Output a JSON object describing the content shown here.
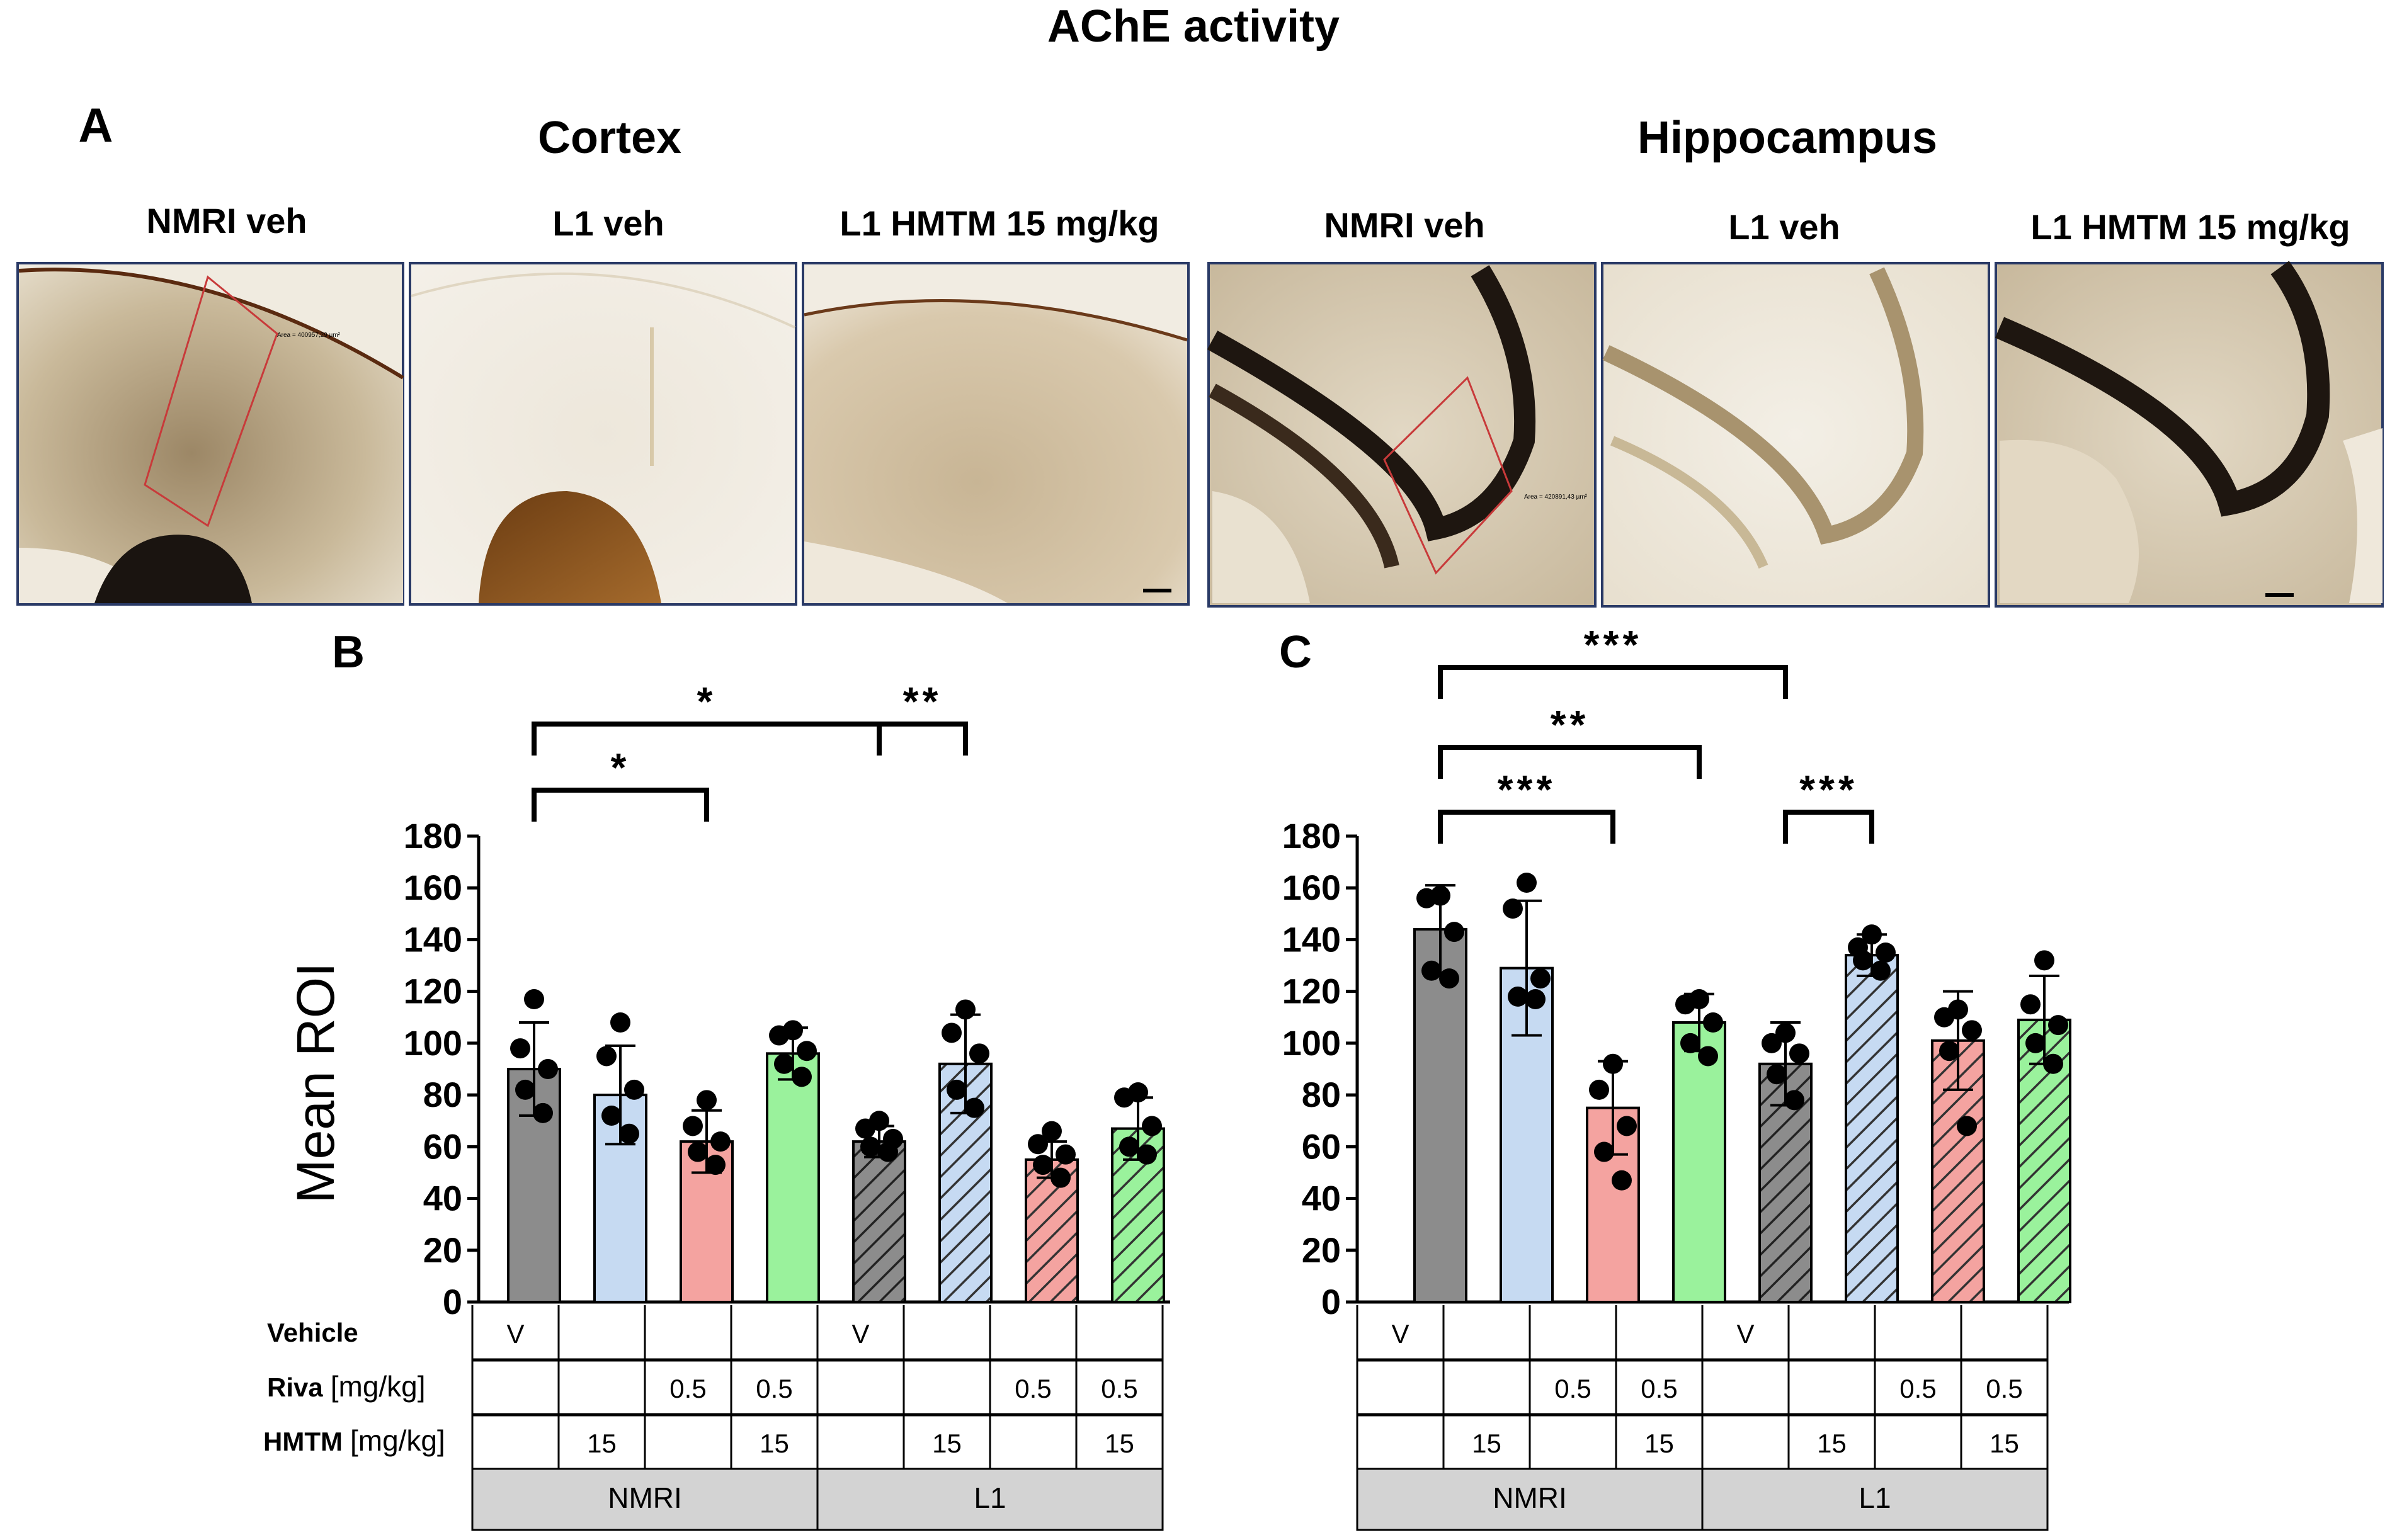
{
  "figure": {
    "title": "AChE activity",
    "panel_a_label": "A",
    "panel_b_label": "B",
    "panel_c_label": "C",
    "region_cortex": "Cortex",
    "region_hippocampus": "Hippocampus",
    "image_labels": [
      "NMRI veh",
      "L1 veh",
      "L1 HMTM 15 mg/kg",
      "NMRI veh",
      "L1 veh",
      "L1 HMTM 15 mg/kg"
    ]
  },
  "colors": {
    "grey": "#8c8c8c",
    "blue": "#c6daf2",
    "red": "#f4a3a0",
    "green": "#9af29c",
    "table_fill": "#d3d3d3"
  },
  "table": {
    "row_labels": [
      {
        "bold": "Vehicle",
        "unit": ""
      },
      {
        "bold": "Riva",
        "unit": "[mg/kg]"
      },
      {
        "bold": "HMTM",
        "unit": "[mg/kg]"
      }
    ],
    "vehicle": [
      "V",
      "",
      "",
      "",
      "V",
      "",
      "",
      ""
    ],
    "riva": [
      "",
      "",
      "0.5",
      "0.5",
      "",
      "",
      "0.5",
      "0.5"
    ],
    "hmtm": [
      "",
      "15",
      "",
      "15",
      "",
      "15",
      "",
      "15"
    ],
    "strains": [
      "NMRI",
      "L1"
    ]
  },
  "chart_data": [
    {
      "type": "bar",
      "panel": "B",
      "title": "Cortex",
      "ylabel": "Mean ROI",
      "ylim": [
        0,
        180
      ],
      "yticks": [
        0,
        20,
        40,
        60,
        80,
        100,
        120,
        140,
        160,
        180
      ],
      "categories": [
        "NMRI V",
        "NMRI HMTM 15",
        "NMRI Riva 0.5",
        "NMRI Riva 0.5 + HMTM 15",
        "L1 V",
        "L1 HMTM 15",
        "L1 Riva 0.5",
        "L1 Riva 0.5 + HMTM 15"
      ],
      "values": [
        90,
        80,
        62,
        96,
        62,
        92,
        55,
        67
      ],
      "errors": [
        18,
        19,
        12,
        10,
        6,
        19,
        7,
        12
      ],
      "colors": [
        "grey",
        "blue",
        "red",
        "green",
        "grey",
        "blue",
        "red",
        "green"
      ],
      "hatched": [
        false,
        false,
        false,
        false,
        true,
        true,
        true,
        true
      ],
      "points": [
        [
          117,
          98,
          90,
          82,
          73
        ],
        [
          108,
          95,
          82,
          72,
          65
        ],
        [
          78,
          68,
          62,
          58,
          53
        ],
        [
          105,
          103,
          97,
          92,
          87
        ],
        [
          70,
          67,
          63,
          60,
          58
        ],
        [
          113,
          104,
          96,
          82,
          75
        ],
        [
          66,
          61,
          57,
          53,
          48
        ],
        [
          81,
          79,
          68,
          60,
          57
        ]
      ],
      "significance": [
        {
          "from": 0,
          "to": 2,
          "label": "*"
        },
        {
          "from": 0,
          "to": 4,
          "label": "*"
        },
        {
          "from": 4,
          "to": 5,
          "label": "**"
        }
      ]
    },
    {
      "type": "bar",
      "panel": "C",
      "title": "Hippocampus",
      "ylabel": "",
      "ylim": [
        0,
        180
      ],
      "yticks": [
        0,
        20,
        40,
        60,
        80,
        100,
        120,
        140,
        160,
        180
      ],
      "categories": [
        "NMRI V",
        "NMRI HMTM 15",
        "NMRI Riva 0.5",
        "NMRI Riva 0.5 + HMTM 15",
        "L1 V",
        "L1 HMTM 15",
        "L1 Riva 0.5",
        "L1 Riva 0.5 + HMTM 15"
      ],
      "values": [
        144,
        129,
        75,
        108,
        92,
        134,
        101,
        109
      ],
      "errors": [
        17,
        26,
        18,
        11,
        16,
        8,
        19,
        17
      ],
      "colors": [
        "grey",
        "blue",
        "red",
        "green",
        "grey",
        "blue",
        "red",
        "green"
      ],
      "hatched": [
        false,
        false,
        false,
        false,
        true,
        true,
        true,
        true
      ],
      "points": [
        [
          157,
          156,
          143,
          128,
          125
        ],
        [
          162,
          152,
          125,
          118,
          117
        ],
        [
          92,
          82,
          68,
          58,
          47
        ],
        [
          117,
          115,
          108,
          100,
          95
        ],
        [
          104,
          100,
          96,
          88,
          78
        ],
        [
          142,
          137,
          135,
          132,
          128
        ],
        [
          113,
          110,
          105,
          97,
          68
        ],
        [
          132,
          115,
          107,
          100,
          92
        ]
      ],
      "significance": [
        {
          "from": 0,
          "to": 2,
          "label": "***"
        },
        {
          "from": 0,
          "to": 3,
          "label": "**"
        },
        {
          "from": 0,
          "to": 4,
          "label": "***"
        },
        {
          "from": 4,
          "to": 5,
          "label": "***"
        }
      ]
    }
  ]
}
